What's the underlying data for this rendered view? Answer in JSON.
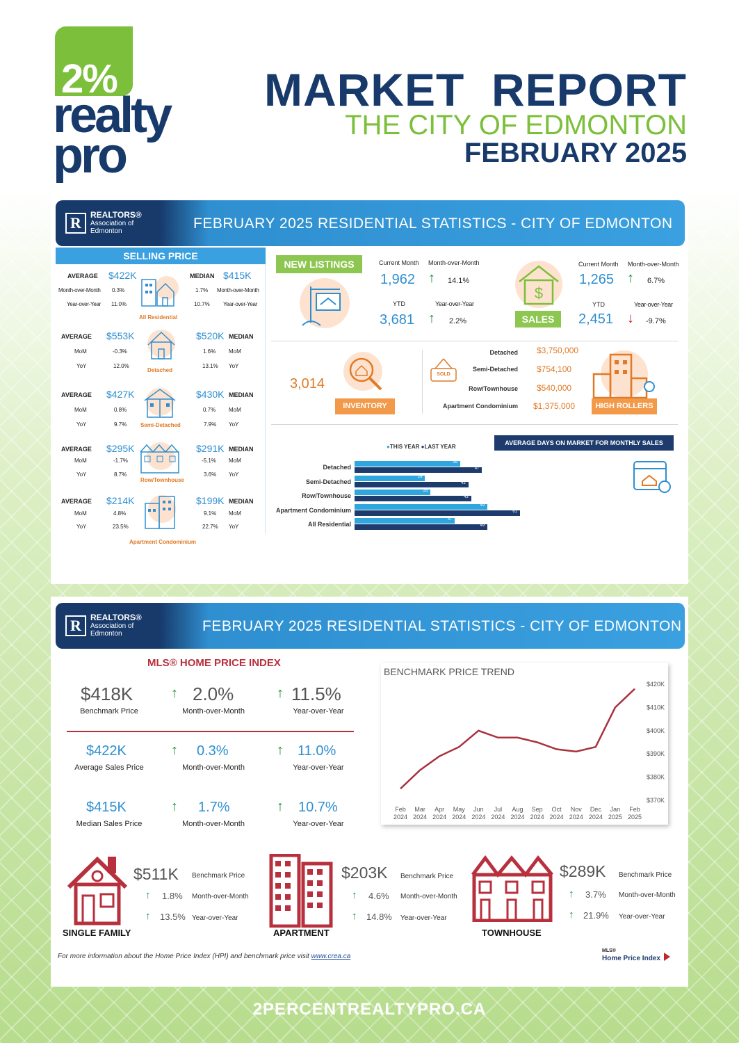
{
  "header": {
    "logo_pct": "2%",
    "logo_word1": "realty",
    "logo_word2": "pro",
    "title": "MARKET  REPORT",
    "city": "THE CITY OF EDMONTON",
    "month": "FEBRUARY 2025"
  },
  "banner": {
    "realtors_line1": "REALTORS®",
    "realtors_line2": "Association of",
    "realtors_line3": "Edmonton",
    "title": "FEBRUARY 2025 RESIDENTIAL STATISTICS - CITY OF EDMONTON"
  },
  "selling_price": {
    "heading": "SELLING PRICE",
    "all": {
      "avg_label": "AVERAGE",
      "avg": "$422K",
      "med_label": "MEDIAN",
      "med": "$415K",
      "mom_label": "Month-over-Month",
      "yoy_label": "Year-over-Year",
      "avg_mom": "0.3%",
      "avg_yoy": "11.0%",
      "med_mom": "1.7%",
      "med_yoy": "10.7%",
      "caption": "All Residential"
    },
    "rows": [
      {
        "avg": "$553K",
        "med": "$520K",
        "avg_mom": "-0.3%",
        "avg_yoy": "12.0%",
        "med_mom": "1.6%",
        "med_yoy": "13.1%",
        "caption": "Detached"
      },
      {
        "avg": "$427K",
        "med": "$430K",
        "avg_mom": "0.8%",
        "avg_yoy": "9.7%",
        "med_mom": "0.7%",
        "med_yoy": "7.9%",
        "caption": "Semi-Detached"
      },
      {
        "avg": "$295K",
        "med": "$291K",
        "avg_mom": "-1.7%",
        "avg_yoy": "8.7%",
        "med_mom": "-5.1%",
        "med_yoy": "3.6%",
        "caption": "Row/Townhouse"
      },
      {
        "avg": "$214K",
        "med": "$199K",
        "avg_mom": "4.8%",
        "avg_yoy": "23.5%",
        "med_mom": "9.1%",
        "med_yoy": "22.7%",
        "caption": "Apartment Condominium"
      }
    ],
    "avg_label": "AVERAGE",
    "med_label": "MEDIAN",
    "mom": "MoM",
    "yoy": "YoY"
  },
  "new_listings": {
    "tag": "NEW  LISTINGS",
    "cur_label": "Current Month",
    "mom_label": "Month-over-Month",
    "cur": "1,962",
    "mom": "14.1%",
    "ytd_label": "YTD",
    "yoy_label": "Year-over-Year",
    "ytd": "3,681",
    "yoy": "2.2%"
  },
  "sales": {
    "tag": "SALES",
    "cur_label": "Current Month",
    "mom_label": "Month-over-Month",
    "cur": "1,265",
    "mom": "6.7%",
    "ytd_label": "YTD",
    "yoy_label": "Year-over-Year",
    "ytd": "2,451",
    "yoy": "-9.7%"
  },
  "inventory": {
    "value": "3,014",
    "tag": "INVENTORY"
  },
  "high_rollers": {
    "tag": "HIGH ROLLERS",
    "sold": "SOLD",
    "items": [
      {
        "label": "Detached",
        "value": "$3,750,000"
      },
      {
        "label": "Semi-Detached",
        "value": "$754,100"
      },
      {
        "label": "Row/Townhouse",
        "value": "$540,000"
      },
      {
        "label": "Apartment Condominium",
        "value": "$1,375,000"
      }
    ]
  },
  "chart_data": [
    {
      "type": "bar",
      "title": "AVERAGE DAYS ON MARKET FOR MONTHLY SALES",
      "legend": [
        "THIS YEAR",
        "LAST YEAR"
      ],
      "categories": [
        "Detached",
        "Semi-Detached",
        "Row/Townhouse",
        "Apartment Condominium",
        "All Residential"
      ],
      "series": [
        {
          "name": "THIS YEAR",
          "values": [
            39,
            26,
            28,
            49,
            37
          ],
          "color": "#2fa6dd"
        },
        {
          "name": "LAST YEAR",
          "values": [
            47,
            42,
            43,
            61,
            49
          ],
          "color": "#1d3b6c"
        }
      ],
      "xlim": [
        0,
        61
      ]
    },
    {
      "type": "line",
      "title": "BENCHMARK PRICE TREND",
      "x": [
        "Feb 2024",
        "Mar 2024",
        "Apr 2024",
        "May 2024",
        "Jun 2024",
        "Jul 2024",
        "Aug 2024",
        "Sep 2024",
        "Oct 2024",
        "Nov 2024",
        "Dec 2024",
        "Jan 2025",
        "Feb 2025"
      ],
      "y": [
        375,
        383,
        389,
        393,
        400,
        397,
        397,
        395,
        392,
        391,
        393,
        410,
        418
      ],
      "yticks": [
        "$420K",
        "$410K",
        "$400K",
        "$390K",
        "$380K",
        "$370K"
      ],
      "ylim": [
        370,
        420
      ],
      "color": "#a8323d"
    }
  ],
  "hpi": {
    "heading": "MLS® HOME PRICE INDEX",
    "rows": [
      {
        "val": "$418K",
        "cap": "Benchmark Price",
        "mom": "2.0%",
        "mom_cap": "Month-over-Month",
        "yoy": "11.5%",
        "yoy_cap": "Year-over-Year"
      },
      {
        "val": "$422K",
        "cap": "Average Sales Price",
        "mom": "0.3%",
        "mom_cap": "Month-over-Month",
        "yoy": "11.0%",
        "yoy_cap": "Year-over-Year"
      },
      {
        "val": "$415K",
        "cap": "Median Sales Price",
        "mom": "1.7%",
        "mom_cap": "Month-over-Month",
        "yoy": "10.7%",
        "yoy_cap": "Year-over-Year"
      }
    ]
  },
  "categories": [
    {
      "name": "SINGLE FAMILY",
      "val": "$511K",
      "bench": "Benchmark Price",
      "mom": "1.8%",
      "mom_lbl": "Month-over-Month",
      "yoy": "13.5%",
      "yoy_lbl": "Year-over-Year"
    },
    {
      "name": "APARTMENT",
      "val": "$203K",
      "bench": "Benchmark Price",
      "mom": "4.6%",
      "mom_lbl": "Month-over-Month",
      "yoy": "14.8%",
      "yoy_lbl": "Year-over-Year"
    },
    {
      "name": "TOWNHOUSE",
      "val": "$289K",
      "bench": "Benchmark Price",
      "mom": "3.7%",
      "mom_lbl": "Month-over-Month",
      "yoy": "21.9%",
      "yoy_lbl": "Year-over-Year"
    }
  ],
  "note": {
    "text": "For more information about the Home Price Index (HPI) and benchmark price visit ",
    "link": "www.crea.ca"
  },
  "mls_logo": {
    "line1": "MLS®",
    "line2": "Home Price Index"
  },
  "footer": "2PERCENTREALTYPRO.CA",
  "colors": {
    "navy": "#173a6b",
    "green": "#7bbf3a",
    "blue": "#2e8fd0",
    "orange": "#e07a26",
    "maroon": "#a8323d"
  }
}
